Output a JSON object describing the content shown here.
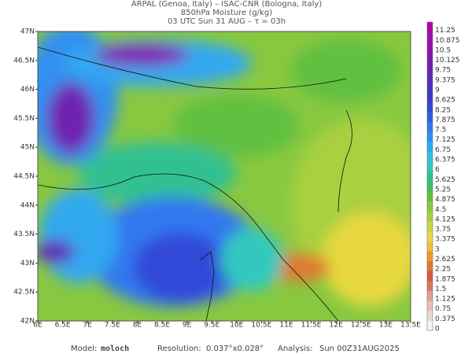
{
  "header": {
    "line1": "ARPAL (Genoa, Italy)  –  ISAC-CNR (Bologna, Italy)",
    "line2": "850hPa Moisture (g/kg)",
    "line3": "03 UTC Sun 31 AUG  –  τ = 03h"
  },
  "x_labels": [
    "6E",
    "6.5E",
    "7E",
    "7.5E",
    "8E",
    "8.5E",
    "9E",
    "9.5E",
    "10E",
    "10.5E",
    "11E",
    "11.5E",
    "12E",
    "12.5E",
    "13E",
    "13.5E"
  ],
  "y_labels": [
    "47N",
    "46.5N",
    "46N",
    "45.5N",
    "45N",
    "44.5N",
    "44N",
    "43.5N",
    "43N",
    "42.5N",
    "42N"
  ],
  "colorbar": {
    "levels": [
      0,
      0.375,
      0.75,
      1.125,
      1.5,
      1.875,
      2.25,
      2.625,
      3,
      3.375,
      3.75,
      4.125,
      4.5,
      4.875,
      5.25,
      5.625,
      6,
      6.375,
      6.75,
      7.125,
      7.5,
      7.875,
      8.25,
      8.625,
      9,
      9.375,
      9.75,
      10.125,
      10.5,
      10.875,
      11.25
    ],
    "colors": [
      "#f4f4f4",
      "#e8d8d8",
      "#e8c0b8",
      "#e0a090",
      "#d87860",
      "#d85a3a",
      "#e07830",
      "#e89a30",
      "#f0c040",
      "#e8d840",
      "#c8d840",
      "#a8d040",
      "#88c840",
      "#60c040",
      "#40c060",
      "#30c090",
      "#30c8c0",
      "#30c0e0",
      "#30a8f0",
      "#3090f0",
      "#3078f0",
      "#3060e0",
      "#3048d8",
      "#4038c8",
      "#5030c0",
      "#6028b8",
      "#7020b0",
      "#8018b0",
      "#9010b0",
      "#a010b0",
      "#b000a8"
    ]
  },
  "footer": {
    "model_label": "Model:",
    "model": "moloch",
    "resolution_label": "Resolution:",
    "resolution": "0.037°x0.028°",
    "analysis_label": "Analysis:",
    "analysis": "Sun 00Z31AUG2025"
  }
}
